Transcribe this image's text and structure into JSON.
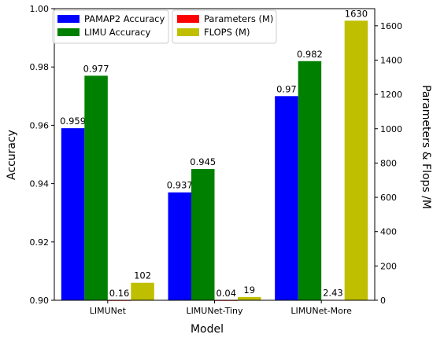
{
  "chart_data": {
    "type": "bar",
    "categories": [
      "LIMUNet",
      "LIMUNet-Tiny",
      "LIMUNet-More"
    ],
    "xlabel": "Model",
    "ylabel_left": "Accuracy",
    "ylabel_right": "Parameters & Flops /M",
    "ylim_left": [
      0.9,
      1.0
    ],
    "yticks_left": [
      "0.90",
      "0.92",
      "0.94",
      "0.96",
      "0.98",
      "1.00"
    ],
    "ylim_right": [
      0,
      1700
    ],
    "yticks_right": [
      "0",
      "200",
      "400",
      "600",
      "800",
      "1000",
      "1200",
      "1400",
      "1600"
    ],
    "legend_position": "top",
    "series": [
      {
        "name": "PAMAP2 Accuracy",
        "axis": "left",
        "color": "#0000ff",
        "values": [
          0.959,
          0.937,
          0.97
        ],
        "labels": [
          "0.959",
          "0.937",
          "0.97"
        ]
      },
      {
        "name": "LIMU Accuracy",
        "axis": "left",
        "color": "#008000",
        "values": [
          0.977,
          0.945,
          0.982
        ],
        "labels": [
          "0.977",
          "0.945",
          "0.982"
        ]
      },
      {
        "name": "Parameters (M)",
        "axis": "right",
        "color": "#ff0000",
        "values": [
          0.16,
          0.04,
          2.43
        ],
        "labels": [
          "0.16",
          "0.04",
          "2.43"
        ]
      },
      {
        "name": "FLOPS (M)",
        "axis": "right",
        "color": "#bfbf00",
        "values": [
          102,
          19,
          1630
        ],
        "labels": [
          "102",
          "19",
          "1630"
        ]
      }
    ]
  }
}
